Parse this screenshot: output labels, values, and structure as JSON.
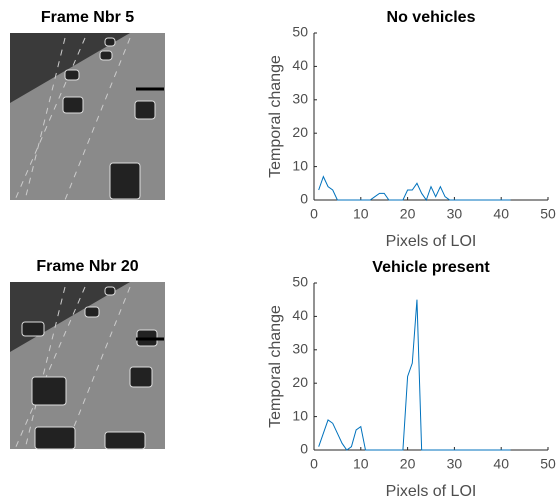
{
  "frames": [
    {
      "title": "Frame Nbr 5"
    },
    {
      "title": "Frame Nbr 20"
    }
  ],
  "chart_data": [
    {
      "type": "line",
      "title": "No vehicles",
      "x_label": "Pixels of LOI",
      "y_label": "Temporal change",
      "color": "#0072bd",
      "x": [
        1,
        2,
        3,
        4,
        5,
        6,
        7,
        8,
        9,
        10,
        11,
        12,
        13,
        14,
        15,
        16,
        17,
        18,
        19,
        20,
        21,
        22,
        23,
        24,
        25,
        26,
        27,
        28,
        29,
        30,
        31,
        32,
        33,
        34,
        35,
        36,
        37,
        38,
        39,
        40,
        41,
        42
      ],
      "values": [
        3,
        7,
        4,
        3,
        0,
        0,
        0,
        0,
        0,
        0,
        0,
        0,
        1,
        2,
        2,
        0,
        0,
        0,
        0,
        3,
        3,
        5,
        2,
        0,
        4,
        1,
        4,
        1,
        0,
        0,
        0,
        0,
        0,
        0,
        0,
        0,
        0,
        0,
        0,
        0,
        0,
        0
      ],
      "xlim": [
        0,
        50
      ],
      "ylim": [
        0,
        50
      ],
      "xticks": [
        0,
        10,
        20,
        30,
        40,
        50
      ],
      "yticks": [
        0,
        10,
        20,
        30,
        40,
        50
      ]
    },
    {
      "type": "line",
      "title": "Vehicle present",
      "x_label": "Pixels of LOI",
      "y_label": "Temporal change",
      "color": "#0072bd",
      "x": [
        1,
        2,
        3,
        4,
        5,
        6,
        7,
        8,
        9,
        10,
        11,
        12,
        13,
        14,
        15,
        16,
        17,
        18,
        19,
        20,
        21,
        22,
        23,
        24,
        25,
        26,
        27,
        28,
        29,
        30,
        31,
        32,
        33,
        34,
        35,
        36,
        37,
        38,
        39,
        40,
        41,
        42
      ],
      "values": [
        1,
        5,
        9,
        8,
        5,
        2,
        0,
        1,
        6,
        7,
        0,
        0,
        0,
        0,
        0,
        0,
        0,
        0,
        0,
        22,
        26,
        45,
        0,
        0,
        0,
        0,
        0,
        0,
        0,
        0,
        0,
        0,
        0,
        0,
        0,
        0,
        0,
        0,
        0,
        0,
        0,
        0
      ],
      "xlim": [
        0,
        50
      ],
      "ylim": [
        0,
        50
      ],
      "xticks": [
        0,
        10,
        20,
        30,
        40,
        50
      ],
      "yticks": [
        0,
        10,
        20,
        30,
        40,
        50
      ]
    }
  ]
}
